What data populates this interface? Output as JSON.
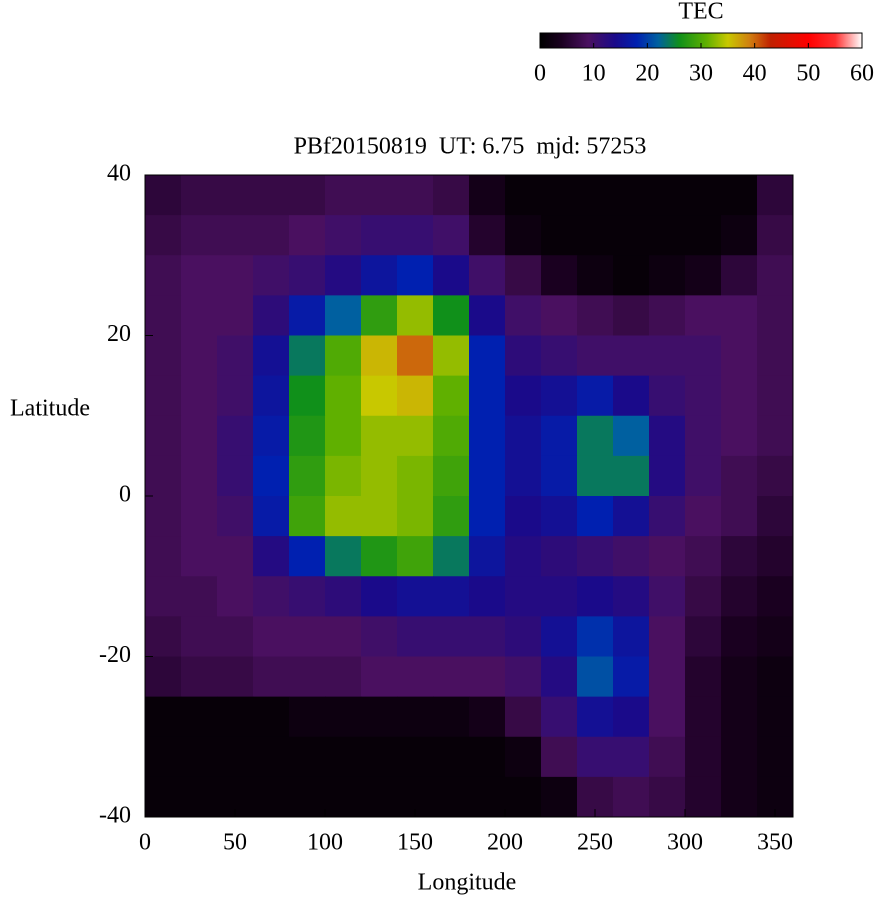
{
  "chart_data": {
    "type": "heatmap",
    "title": "PBf20150819  UT: 6.75  mjd: 57253",
    "x_label": "Longitude",
    "y_label": "Latitude",
    "colorbar_label": "TEC",
    "x": [
      10,
      30,
      50,
      70,
      90,
      110,
      130,
      150,
      170,
      190,
      210,
      230,
      250,
      270,
      290,
      310,
      330,
      350
    ],
    "y": [
      37.5,
      32.5,
      27.5,
      22.5,
      17.5,
      12.5,
      7.5,
      2.5,
      -2.5,
      -7.5,
      -12.5,
      -17.5,
      -22.5,
      -27.5,
      -32.5,
      -37.5
    ],
    "z": [
      [
        6,
        7,
        7,
        7,
        7,
        8,
        8,
        8,
        7,
        3,
        1,
        1,
        1,
        1,
        1,
        1,
        1,
        6
      ],
      [
        7,
        8,
        8,
        8,
        9,
        10,
        11,
        11,
        10,
        5,
        2,
        1,
        1,
        1,
        1,
        1,
        2,
        7
      ],
      [
        8,
        9,
        9,
        10,
        11,
        13,
        16,
        18,
        14,
        10,
        7,
        4,
        2,
        1,
        2,
        3,
        6,
        8
      ],
      [
        8,
        9,
        9,
        12,
        17,
        22,
        28,
        33,
        26,
        14,
        10,
        9,
        8,
        7,
        8,
        9,
        9,
        8
      ],
      [
        8,
        9,
        10,
        15,
        24,
        30,
        36,
        40,
        33,
        18,
        12,
        11,
        10,
        10,
        10,
        10,
        9,
        8
      ],
      [
        8,
        9,
        10,
        16,
        26,
        31,
        35,
        36,
        31,
        18,
        14,
        15,
        17,
        14,
        11,
        10,
        9,
        8
      ],
      [
        8,
        9,
        11,
        17,
        27,
        31,
        33,
        33,
        30,
        18,
        15,
        17,
        24,
        22,
        13,
        10,
        9,
        8
      ],
      [
        8,
        9,
        11,
        18,
        28,
        32,
        33,
        32,
        29,
        18,
        15,
        17,
        24,
        24,
        13,
        10,
        8,
        7
      ],
      [
        8,
        9,
        10,
        17,
        29,
        33,
        33,
        32,
        28,
        18,
        14,
        15,
        18,
        15,
        11,
        9,
        8,
        6
      ],
      [
        8,
        9,
        9,
        13,
        18,
        24,
        27,
        29,
        24,
        16,
        13,
        12,
        11,
        10,
        9,
        8,
        6,
        5
      ],
      [
        8,
        8,
        9,
        10,
        11,
        12,
        14,
        15,
        15,
        14,
        13,
        13,
        14,
        13,
        10,
        7,
        5,
        4
      ],
      [
        7,
        8,
        8,
        9,
        9,
        9,
        10,
        11,
        11,
        11,
        12,
        15,
        19,
        16,
        9,
        6,
        4,
        3
      ],
      [
        6,
        7,
        7,
        8,
        8,
        8,
        9,
        9,
        9,
        9,
        10,
        13,
        21,
        17,
        9,
        5,
        3,
        2
      ],
      [
        1,
        1,
        1,
        1,
        2,
        2,
        2,
        2,
        2,
        3,
        7,
        11,
        15,
        14,
        9,
        5,
        3,
        2
      ],
      [
        1,
        1,
        1,
        1,
        1,
        1,
        1,
        1,
        1,
        1,
        2,
        8,
        11,
        11,
        8,
        5,
        3,
        2
      ],
      [
        1,
        1,
        1,
        1,
        1,
        1,
        1,
        1,
        1,
        1,
        1,
        2,
        7,
        8,
        7,
        5,
        3,
        2
      ]
    ],
    "xlim": [
      0,
      360
    ],
    "xticks": [
      0,
      50,
      100,
      150,
      200,
      250,
      300,
      350
    ],
    "ylim": [
      -40,
      40
    ],
    "yticks": [
      -40,
      -20,
      0,
      20,
      40
    ],
    "clim": [
      0,
      60
    ],
    "cticks": [
      0,
      10,
      20,
      30,
      40,
      50,
      60
    ],
    "colormap": [
      {
        "value": 0,
        "color": "#000000"
      },
      {
        "value": 4,
        "color": "#1a0020"
      },
      {
        "value": 9,
        "color": "#4a1060"
      },
      {
        "value": 14,
        "color": "#1a0a8a"
      },
      {
        "value": 18,
        "color": "#0020b0"
      },
      {
        "value": 22,
        "color": "#0060a0"
      },
      {
        "value": 26,
        "color": "#10901a"
      },
      {
        "value": 31,
        "color": "#60b000"
      },
      {
        "value": 35,
        "color": "#c8c800"
      },
      {
        "value": 39,
        "color": "#d08010"
      },
      {
        "value": 43,
        "color": "#c02000"
      },
      {
        "value": 50,
        "color": "#ff0000"
      },
      {
        "value": 55,
        "color": "#ff3030"
      },
      {
        "value": 60,
        "color": "#ffffff"
      }
    ]
  }
}
